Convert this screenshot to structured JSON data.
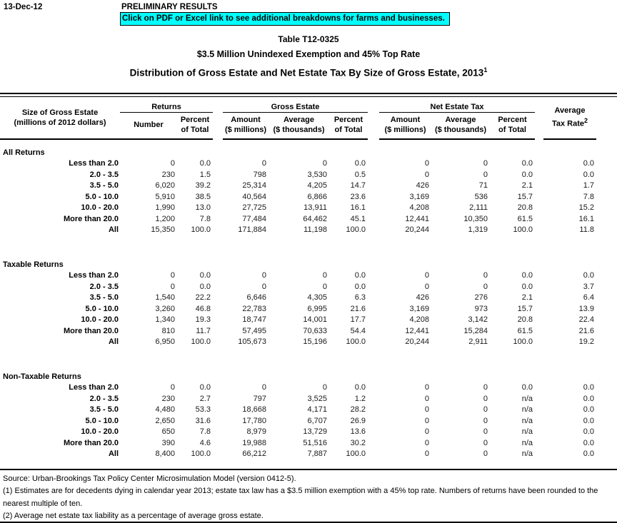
{
  "page": {
    "date": "13-Dec-12",
    "preliminary": "PRELIMINARY RESULTS",
    "banner_text": "Click on PDF or Excel link to see additional breakdowns for farms and businesses.",
    "banner_color": "#00FFFF"
  },
  "titles": {
    "line1": "Table T12-0325",
    "line2": "$3.5 Million Unindexed Exemption and 45% Top Rate",
    "line3": "Distribution of Gross Estate and Net Estate Tax By Size of Gross Estate, 2013",
    "line3_sup": "1"
  },
  "table": {
    "row_label_header": {
      "l1": "Size of Gross Estate",
      "l2": "(millions of 2012 dollars)"
    },
    "groups": [
      {
        "label": "Returns"
      },
      {
        "label": "Gross Estate"
      },
      {
        "label": "Net Estate Tax"
      }
    ],
    "subheaders": [
      {
        "l1": "Number",
        "l2": ""
      },
      {
        "l1": "Percent",
        "l2": "of Total"
      },
      {
        "l1": "Amount",
        "l2": "($ millions)"
      },
      {
        "l1": "Average",
        "l2": "($ thousands)"
      },
      {
        "l1": "Percent",
        "l2": "of Total"
      },
      {
        "l1": "Amount",
        "l2": "($ millions)"
      },
      {
        "l1": "Average",
        "l2": "($ thousands)"
      },
      {
        "l1": "Percent",
        "l2": "of Total"
      }
    ],
    "rate_header": {
      "l1": "Average",
      "l2": "Tax Rate",
      "sup": "2"
    },
    "sections": [
      {
        "name": "All Returns",
        "rows": [
          {
            "label": "Less than 2.0",
            "values": [
              "0",
              "0.0",
              "0",
              "0",
              "0.0",
              "0",
              "0",
              "0.0",
              "0.0"
            ]
          },
          {
            "label": "2.0 - 3.5",
            "values": [
              "230",
              "1.5",
              "798",
              "3,530",
              "0.5",
              "0",
              "0",
              "0.0",
              "0.0"
            ]
          },
          {
            "label": "3.5 - 5.0",
            "values": [
              "6,020",
              "39.2",
              "25,314",
              "4,205",
              "14.7",
              "426",
              "71",
              "2.1",
              "1.7"
            ]
          },
          {
            "label": "5.0 - 10.0",
            "values": [
              "5,910",
              "38.5",
              "40,564",
              "6,866",
              "23.6",
              "3,169",
              "536",
              "15.7",
              "7.8"
            ]
          },
          {
            "label": "10.0 - 20.0",
            "values": [
              "1,990",
              "13.0",
              "27,725",
              "13,911",
              "16.1",
              "4,208",
              "2,111",
              "20.8",
              "15.2"
            ]
          },
          {
            "label": "More than 20.0",
            "values": [
              "1,200",
              "7.8",
              "77,484",
              "64,462",
              "45.1",
              "12,441",
              "10,350",
              "61.5",
              "16.1"
            ]
          },
          {
            "label": "All",
            "values": [
              "15,350",
              "100.0",
              "171,884",
              "11,198",
              "100.0",
              "20,244",
              "1,319",
              "100.0",
              "11.8"
            ]
          }
        ]
      },
      {
        "name": "Taxable Returns",
        "rows": [
          {
            "label": "Less than 2.0",
            "values": [
              "0",
              "0.0",
              "0",
              "0",
              "0.0",
              "0",
              "0",
              "0.0",
              "0.0"
            ]
          },
          {
            "label": "2.0 - 3.5",
            "values": [
              "0",
              "0.0",
              "0",
              "0",
              "0.0",
              "0",
              "0",
              "0.0",
              "3.7"
            ]
          },
          {
            "label": "3.5 - 5.0",
            "values": [
              "1,540",
              "22.2",
              "6,646",
              "4,305",
              "6.3",
              "426",
              "276",
              "2.1",
              "6.4"
            ]
          },
          {
            "label": "5.0 - 10.0",
            "values": [
              "3,260",
              "46.8",
              "22,783",
              "6,995",
              "21.6",
              "3,169",
              "973",
              "15.7",
              "13.9"
            ]
          },
          {
            "label": "10.0 - 20.0",
            "values": [
              "1,340",
              "19.3",
              "18,747",
              "14,001",
              "17.7",
              "4,208",
              "3,142",
              "20.8",
              "22.4"
            ]
          },
          {
            "label": "More than 20.0",
            "values": [
              "810",
              "11.7",
              "57,495",
              "70,633",
              "54.4",
              "12,441",
              "15,284",
              "61.5",
              "21.6"
            ]
          },
          {
            "label": "All",
            "values": [
              "6,950",
              "100.0",
              "105,673",
              "15,196",
              "100.0",
              "20,244",
              "2,911",
              "100.0",
              "19.2"
            ]
          }
        ]
      },
      {
        "name": "Non-Taxable Returns",
        "rows": [
          {
            "label": "Less than 2.0",
            "values": [
              "0",
              "0.0",
              "0",
              "0",
              "0.0",
              "0",
              "0",
              "0.0",
              "0.0"
            ]
          },
          {
            "label": "2.0 - 3.5",
            "values": [
              "230",
              "2.7",
              "797",
              "3,525",
              "1.2",
              "0",
              "0",
              "n/a",
              "0.0"
            ]
          },
          {
            "label": "3.5 - 5.0",
            "values": [
              "4,480",
              "53.3",
              "18,668",
              "4,171",
              "28.2",
              "0",
              "0",
              "n/a",
              "0.0"
            ]
          },
          {
            "label": "5.0 - 10.0",
            "values": [
              "2,650",
              "31.6",
              "17,780",
              "6,707",
              "26.9",
              "0",
              "0",
              "n/a",
              "0.0"
            ]
          },
          {
            "label": "10.0 - 20.0",
            "values": [
              "650",
              "7.8",
              "8,979",
              "13,729",
              "13.6",
              "0",
              "0",
              "n/a",
              "0.0"
            ]
          },
          {
            "label": "More than 20.0",
            "values": [
              "390",
              "4.6",
              "19,988",
              "51,516",
              "30.2",
              "0",
              "0",
              "n/a",
              "0.0"
            ]
          },
          {
            "label": "All",
            "values": [
              "8,400",
              "100.0",
              "66,212",
              "7,887",
              "100.0",
              "0",
              "0",
              "n/a",
              "0.0"
            ]
          }
        ]
      }
    ]
  },
  "footer": {
    "source": "Source: Urban-Brookings Tax Policy Center Microsimulation Model (version 0412-5).",
    "note1": "(1) Estimates are for decedents dying in calendar year 2013; estate tax law has a $3.5 million exemption with a 45% top rate.  Numbers of returns have been rounded to the nearest multiple of ten.",
    "note2": "(2) Average net estate tax liability as a percentage of average gross estate."
  }
}
